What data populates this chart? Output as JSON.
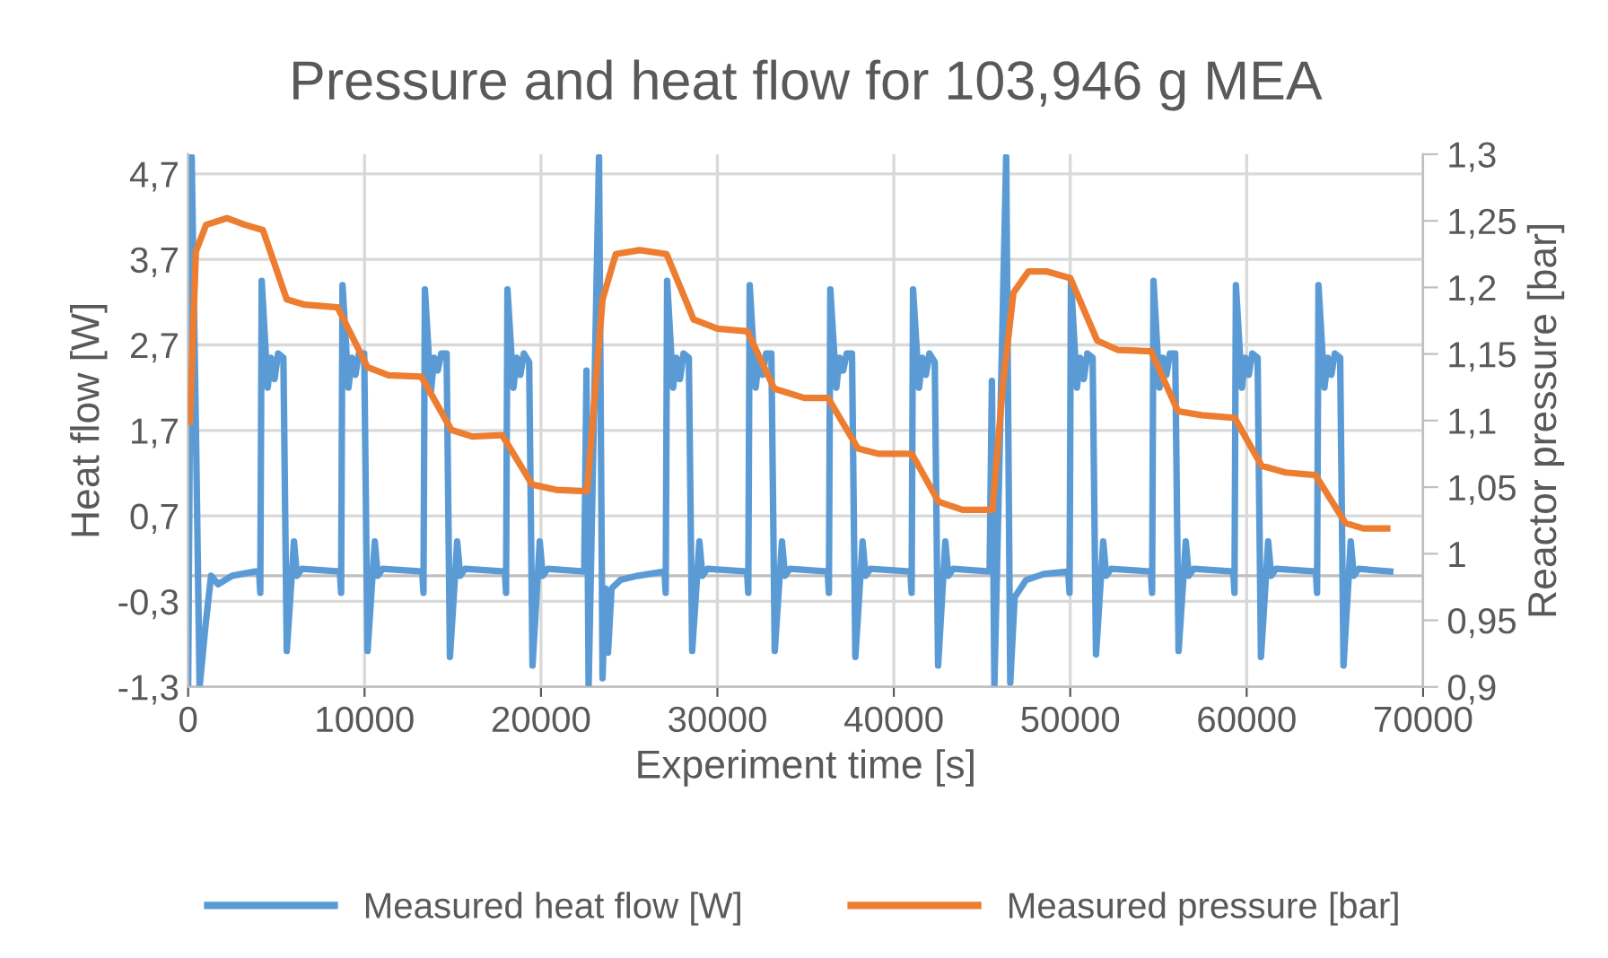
{
  "chart_data": {
    "type": "line",
    "title": "Pressure and heat flow for 103,946 g MEA",
    "xlabel": "Experiment time [s]",
    "ylabel": "Heat flow [W]",
    "y2label": "Reactor pressure [bar]",
    "xlim": [
      0,
      70000
    ],
    "xticks": [
      0,
      10000,
      20000,
      30000,
      40000,
      50000,
      60000,
      70000
    ],
    "ylim": [
      -1.3,
      4.93
    ],
    "yticks": [
      {
        "value": -1.3,
        "label": "-1,3"
      },
      {
        "value": -0.3,
        "label": "-0,3"
      },
      {
        "value": 0.7,
        "label": "0,7"
      },
      {
        "value": 1.7,
        "label": "1,7"
      },
      {
        "value": 2.7,
        "label": "2,7"
      },
      {
        "value": 3.7,
        "label": "3,7"
      },
      {
        "value": 4.7,
        "label": "4,7"
      }
    ],
    "y2lim": [
      0.9,
      1.3
    ],
    "y2ticks": [
      {
        "value": 0.9,
        "label": "0,9"
      },
      {
        "value": 0.95,
        "label": "0,95"
      },
      1,
      {
        "value": 1.05,
        "label": "1,05"
      },
      {
        "value": 1.1,
        "label": "1,1"
      },
      {
        "value": 1.15,
        "label": "1,15"
      },
      {
        "value": 1.2,
        "label": "1,2"
      },
      {
        "value": 1.25,
        "label": "1,25"
      },
      {
        "value": 1.3,
        "label": "1,3"
      }
    ],
    "grid": true,
    "legend": "bottom",
    "marker": "none",
    "line_style": "solid",
    "ref_lines": [
      {
        "axis": "y",
        "value": 0,
        "color": "#bfbfbf"
      }
    ],
    "series": [
      {
        "name": "Measured heat flow [W]",
        "color": "#5b9bd5",
        "x": [
          0,
          200,
          450,
          650,
          1000,
          1300,
          1700,
          2500,
          3800,
          4020,
          4090,
          4170,
          4510,
          4700,
          4900,
          5100,
          5400,
          5590,
          6000,
          6170,
          6440,
          8600,
          8670,
          8750,
          9090,
          9280,
          9480,
          9680,
          9980,
          10170,
          10580,
          10750,
          11020,
          13270,
          13340,
          13420,
          13760,
          13950,
          14150,
          14350,
          14650,
          14840,
          15250,
          15420,
          15690,
          17950,
          18020,
          18100,
          18440,
          18630,
          18830,
          19030,
          19330,
          19520,
          19930,
          20100,
          20370,
          22450,
          22580,
          22700,
          23290,
          23490,
          23650,
          23800,
          24000,
          24500,
          25500,
          27000,
          27070,
          27150,
          27490,
          27680,
          27880,
          28080,
          28380,
          28570,
          28980,
          29150,
          29420,
          31680,
          31750,
          31830,
          32170,
          32360,
          32560,
          32760,
          33060,
          33250,
          33660,
          33830,
          34100,
          36250,
          36320,
          36400,
          36740,
          36930,
          37130,
          37330,
          37630,
          37820,
          38230,
          38400,
          38670,
          40940,
          41010,
          41090,
          41430,
          41620,
          41820,
          42020,
          42320,
          42510,
          42920,
          43090,
          43360,
          45430,
          45560,
          45700,
          46370,
          46600,
          46850,
          47500,
          48500,
          49890,
          49960,
          50040,
          50380,
          50570,
          50770,
          50970,
          51270,
          51460,
          51870,
          52040,
          52310,
          54570,
          54640,
          54720,
          55060,
          55250,
          55450,
          55650,
          55950,
          56140,
          56550,
          56720,
          56990,
          59240,
          59310,
          59390,
          59730,
          59920,
          60120,
          60320,
          60620,
          60810,
          61220,
          61390,
          61660,
          63920,
          63990,
          64070,
          64410,
          64600,
          64800,
          65000,
          65300,
          65490,
          65900,
          66070,
          66340,
          68140
        ],
        "values": [
          -1.3,
          4.9,
          1.6,
          -1.3,
          -0.55,
          0.0,
          -0.1,
          0.0,
          0.05,
          0.05,
          -0.2,
          3.45,
          2.2,
          2.55,
          2.3,
          2.6,
          2.55,
          -0.88,
          0.4,
          0.0,
          0.08,
          0.05,
          -0.2,
          3.4,
          2.2,
          2.55,
          2.35,
          2.6,
          2.6,
          -0.88,
          0.4,
          0.0,
          0.08,
          0.05,
          -0.2,
          3.35,
          2.15,
          2.55,
          2.4,
          2.6,
          2.6,
          -0.95,
          0.4,
          0.0,
          0.08,
          0.05,
          -0.2,
          3.35,
          2.2,
          2.55,
          2.35,
          2.6,
          2.5,
          -1.05,
          0.4,
          0.0,
          0.08,
          0.05,
          2.4,
          -1.3,
          4.9,
          -1.2,
          -0.15,
          -0.9,
          -0.15,
          -0.05,
          0.0,
          0.05,
          -0.2,
          3.45,
          2.2,
          2.55,
          2.3,
          2.6,
          2.55,
          -0.88,
          0.4,
          0.0,
          0.08,
          0.05,
          -0.2,
          3.4,
          2.2,
          2.55,
          2.35,
          2.6,
          2.6,
          -0.88,
          0.4,
          0.0,
          0.08,
          0.05,
          -0.2,
          3.35,
          2.2,
          2.55,
          2.4,
          2.6,
          2.6,
          -0.95,
          0.4,
          0.0,
          0.08,
          0.05,
          -0.2,
          3.35,
          2.2,
          2.55,
          2.35,
          2.6,
          2.5,
          -1.05,
          0.4,
          0.0,
          0.08,
          0.05,
          2.28,
          -1.3,
          4.9,
          -1.25,
          -0.25,
          -0.05,
          0.02,
          0.05,
          -0.2,
          3.45,
          2.2,
          2.55,
          2.3,
          2.6,
          2.55,
          -0.92,
          0.4,
          0.0,
          0.08,
          0.05,
          -0.2,
          3.45,
          2.2,
          2.55,
          2.35,
          2.6,
          2.6,
          -0.88,
          0.4,
          0.0,
          0.08,
          0.05,
          -0.2,
          3.4,
          2.2,
          2.55,
          2.35,
          2.6,
          2.55,
          -0.95,
          0.4,
          0.0,
          0.08,
          0.05,
          -0.2,
          3.4,
          2.2,
          2.55,
          2.35,
          2.6,
          2.55,
          -1.05,
          0.4,
          0.0,
          0.08,
          0.05
        ]
      },
      {
        "name": "Measured pressure [bar]",
        "color": "#ed7d31",
        "axis": "y2",
        "x": [
          100,
          440,
          1020,
          2200,
          3220,
          4240,
          5590,
          6610,
          8470,
          10170,
          11360,
          13220,
          14920,
          16100,
          17800,
          19500,
          20850,
          22610,
          23490,
          24240,
          25600,
          27120,
          28650,
          30000,
          31700,
          33220,
          34920,
          36270,
          37970,
          39150,
          41020,
          42540,
          43900,
          45590,
          46200,
          46780,
          47630,
          48640,
          50000,
          51530,
          52710,
          54580,
          56110,
          57460,
          59320,
          60850,
          62210,
          63900,
          65600,
          66610,
          67970
        ],
        "values": [
          1.099,
          1.227,
          1.247,
          1.252,
          1.247,
          1.243,
          1.191,
          1.187,
          1.185,
          1.14,
          1.134,
          1.133,
          1.093,
          1.088,
          1.089,
          1.052,
          1.048,
          1.047,
          1.191,
          1.225,
          1.228,
          1.225,
          1.176,
          1.169,
          1.167,
          1.124,
          1.117,
          1.117,
          1.079,
          1.075,
          1.075,
          1.039,
          1.033,
          1.033,
          1.129,
          1.196,
          1.212,
          1.212,
          1.207,
          1.16,
          1.153,
          1.152,
          1.107,
          1.104,
          1.102,
          1.066,
          1.061,
          1.059,
          1.023,
          1.019,
          1.019
        ]
      }
    ]
  }
}
